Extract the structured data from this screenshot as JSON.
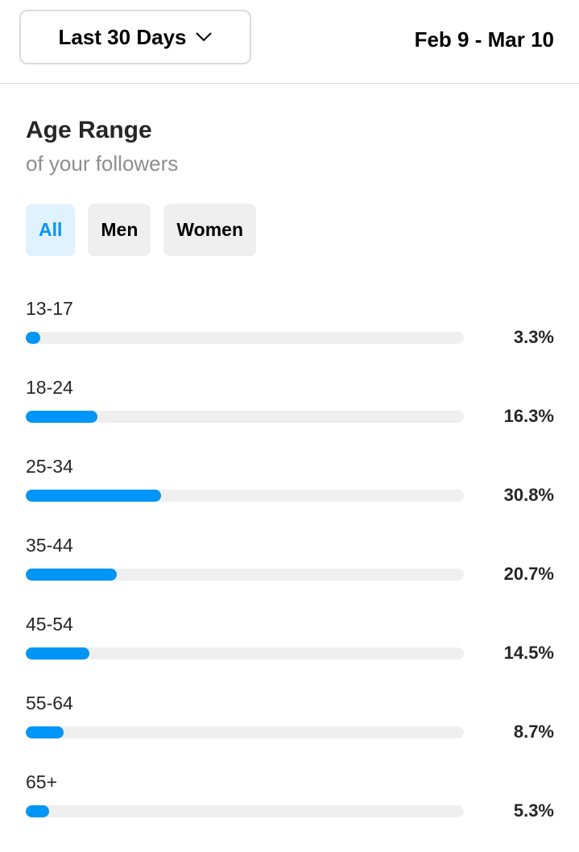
{
  "header": {
    "range_label": "Last 30 Days",
    "date_range": "Feb 9 - Mar 10"
  },
  "section": {
    "title": "Age Range",
    "subtitle": "of your followers"
  },
  "filters": [
    {
      "label": "All",
      "active": true
    },
    {
      "label": "Men",
      "active": false
    },
    {
      "label": "Women",
      "active": false
    }
  ],
  "colors": {
    "accent": "#0095f6",
    "track": "#efefef",
    "active_filter_bg": "#e0f1ff"
  },
  "chart_data": {
    "type": "bar",
    "categories": [
      "13-17",
      "18-24",
      "25-34",
      "35-44",
      "45-54",
      "55-64",
      "65+"
    ],
    "values": [
      3.3,
      16.3,
      30.8,
      20.7,
      14.5,
      8.7,
      5.3
    ],
    "value_labels": [
      "3.3%",
      "16.3%",
      "30.8%",
      "20.7%",
      "14.5%",
      "8.7%",
      "5.3%"
    ],
    "title": "Age Range",
    "subtitle": "of your followers",
    "xlim": [
      0,
      100
    ],
    "orientation": "horizontal"
  }
}
